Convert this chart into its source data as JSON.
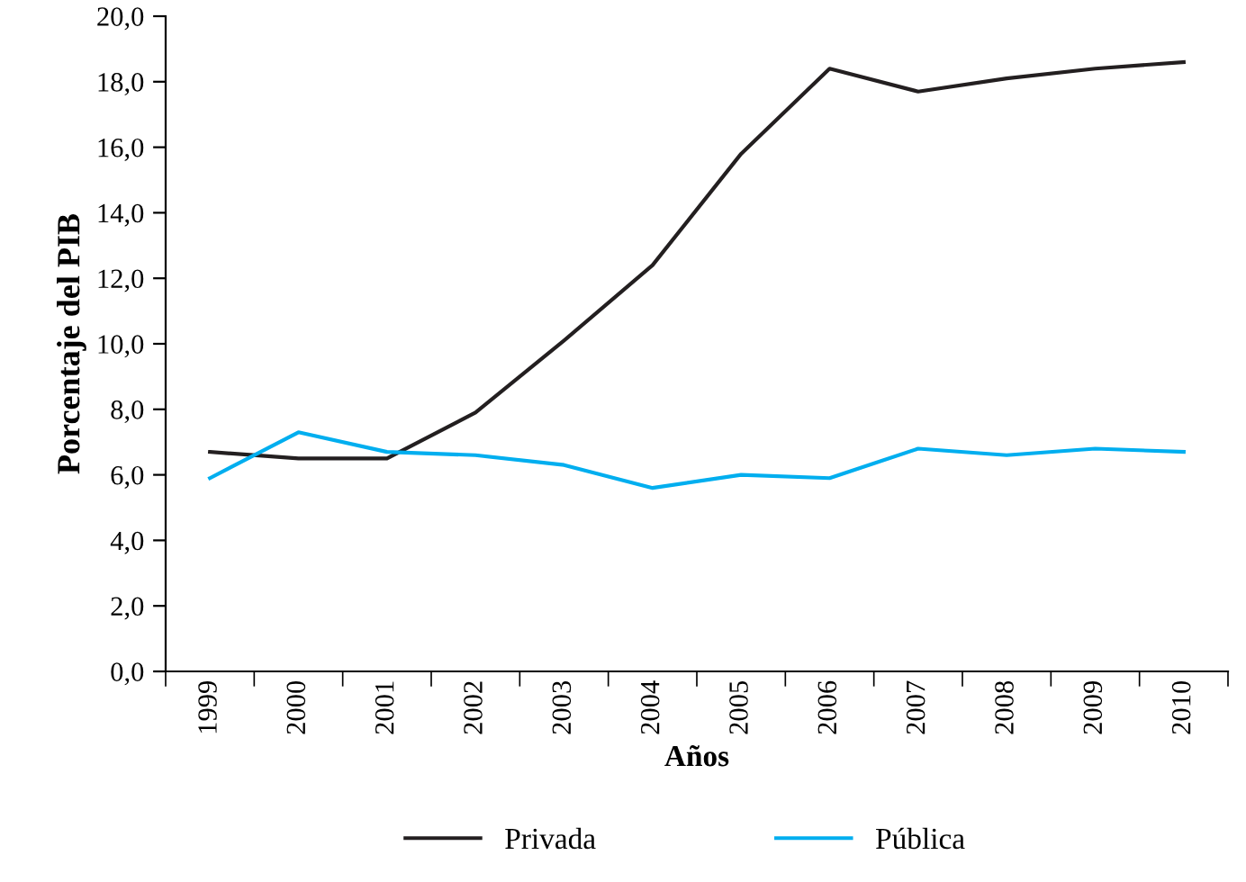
{
  "chart_data": {
    "type": "line",
    "xlabel": "Años",
    "ylabel": "Porcentaje del PIB",
    "categories": [
      "1999",
      "2000",
      "2001",
      "2002",
      "2003",
      "2004",
      "2005",
      "2006",
      "2007",
      "2008",
      "2009",
      "2010"
    ],
    "series": [
      {
        "name": "Privada",
        "color": "#231f20",
        "values": [
          6.7,
          6.5,
          6.5,
          7.9,
          10.1,
          12.4,
          15.8,
          18.4,
          17.7,
          18.1,
          18.4,
          18.6
        ]
      },
      {
        "name": "Pública",
        "color": "#00aeef",
        "values": [
          5.9,
          7.3,
          6.7,
          6.6,
          6.3,
          5.6,
          6.0,
          5.9,
          6.8,
          6.6,
          6.8,
          6.7
        ]
      }
    ],
    "ylim": [
      0,
      20
    ],
    "yticks": [
      {
        "value": 0,
        "label": "0,0"
      },
      {
        "value": 2,
        "label": "2,0"
      },
      {
        "value": 4,
        "label": "4,0"
      },
      {
        "value": 6,
        "label": "6,0"
      },
      {
        "value": 8,
        "label": "8,0"
      },
      {
        "value": 10,
        "label": "10,0"
      },
      {
        "value": 12,
        "label": "12,0"
      },
      {
        "value": 14,
        "label": "14,0"
      },
      {
        "value": 16,
        "label": "16,0"
      },
      {
        "value": 18,
        "label": "18,0"
      },
      {
        "value": 20,
        "label": "20,0"
      }
    ],
    "grid": false,
    "legend": "bottom",
    "marker": "none",
    "line_style": "solid"
  }
}
